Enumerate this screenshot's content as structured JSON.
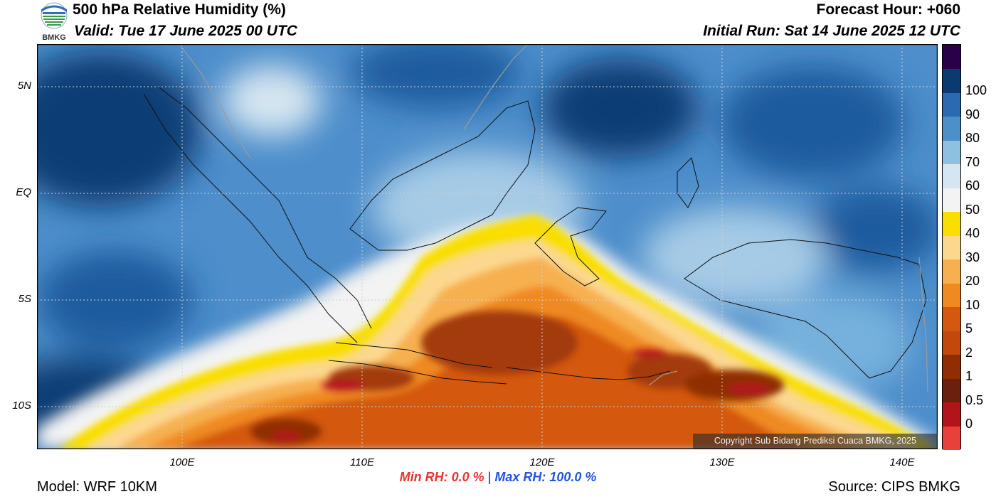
{
  "header": {
    "title": "500 hPa Relative Humidity (%)",
    "valid": "Valid: Tue 17 June 2025 00 UTC",
    "forecast_hour": "Forecast Hour: +060",
    "initial_run": "Initial Run: Sat 14 June 2025 12 UTC"
  },
  "logo": {
    "text": "BMKG",
    "icon": "bmkg-logo-icon"
  },
  "map": {
    "lat_labels": [
      "5N",
      "EQ",
      "5S",
      "10S"
    ],
    "lon_labels": [
      "100E",
      "110E",
      "120E",
      "130E",
      "140E"
    ],
    "copyright": "Copyright Sub Bidang Prediksi Cuaca BMKG, 2025"
  },
  "colorbar": {
    "labels": [
      "100",
      "90",
      "80",
      "70",
      "60",
      "50",
      "40",
      "30",
      "20",
      "10",
      "5",
      "2",
      "1",
      "0.5",
      "0"
    ],
    "colors": [
      "#e8413a",
      "#b3141a",
      "#6b200e",
      "#8f2d05",
      "#c2480c",
      "#d4580f",
      "#ef8a20",
      "#f7b04f",
      "#fcd88f",
      "#f9de00",
      "#f3f3f3",
      "#d6e6f1",
      "#8ec0e0",
      "#4c8fc9",
      "#2b69b0",
      "#0b3a70",
      "#2a004a"
    ]
  },
  "footer": {
    "min_label": "Min RH:",
    "min_value": "0.0 %",
    "separator": "|",
    "max_label": "Max RH:",
    "max_value": "100.0 %",
    "model": "Model: WRF 10KM",
    "source": "Source: CIPS BMKG"
  }
}
